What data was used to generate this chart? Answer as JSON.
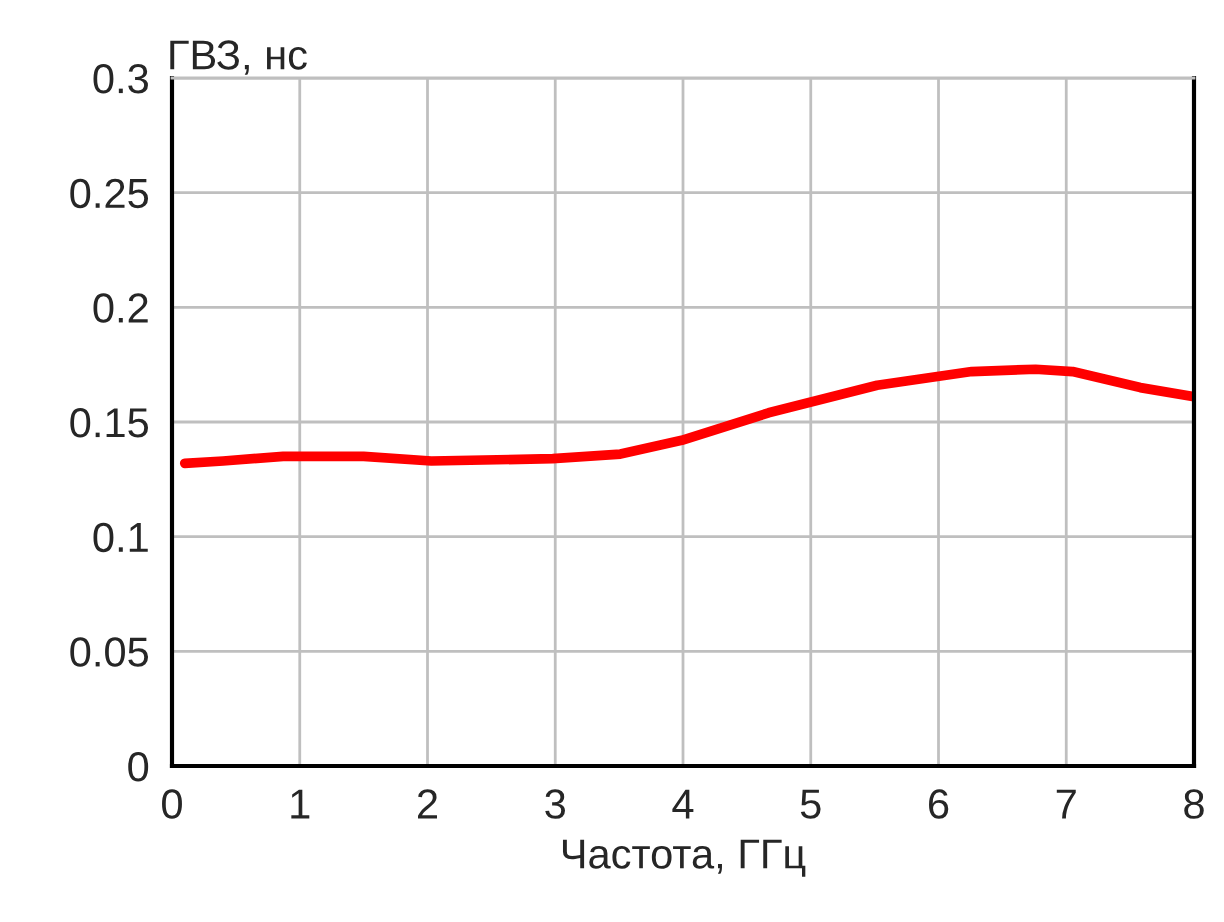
{
  "chart_data": {
    "type": "line",
    "ylabel": "ГВЗ, нс",
    "xlabel": "Частота, ГГц",
    "x": [
      0.1,
      0.4,
      0.87,
      1.5,
      2.03,
      2.98,
      3.51,
      3.99,
      4.67,
      5.52,
      6.26,
      6.76,
      7.05,
      7.58,
      8
    ],
    "series": [
      {
        "color": "#ff0000",
        "values": [
          0.132,
          0.133,
          0.135,
          0.135,
          0.133,
          0.134,
          0.136,
          0.142,
          0.154,
          0.166,
          0.172,
          0.173,
          0.172,
          0.165,
          0.161
        ]
      }
    ],
    "xlim": [
      0,
      8
    ],
    "ylim": [
      0,
      0.3
    ],
    "xticks": [
      0,
      1,
      2,
      3,
      4,
      5,
      6,
      7,
      8
    ],
    "yticks": [
      0,
      0.05,
      0.1,
      0.15,
      0.2,
      0.25,
      0.3
    ],
    "grid": true,
    "marker": "none",
    "line_style": "solid"
  }
}
